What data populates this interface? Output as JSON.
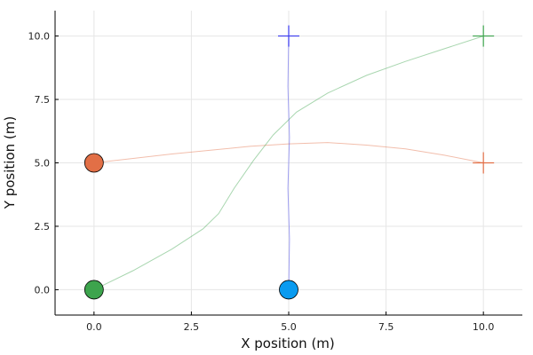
{
  "chart_data": {
    "type": "line",
    "title": "",
    "xlabel": "X position (m)",
    "ylabel": "Y position (m)",
    "xlim": [
      -1,
      11
    ],
    "ylim": [
      -1,
      11
    ],
    "xticks": [
      0.0,
      2.5,
      5.0,
      7.5,
      10.0
    ],
    "yticks": [
      0.0,
      2.5,
      5.0,
      7.5,
      10.0
    ],
    "xtick_labels": [
      "0.0",
      "2.5",
      "5.0",
      "7.5",
      "10.0"
    ],
    "ytick_labels": [
      "0.0",
      "2.5",
      "5.0",
      "7.5",
      "10.0"
    ],
    "grid": true,
    "legend": "none",
    "series": [
      {
        "color": "#e26f46",
        "start": [
          0,
          5
        ],
        "goal": [
          10,
          5
        ],
        "path": [
          [
            0,
            5
          ],
          [
            2,
            5.35
          ],
          [
            4,
            5.65
          ],
          [
            5,
            5.75
          ],
          [
            6,
            5.8
          ],
          [
            7,
            5.7
          ],
          [
            8,
            5.55
          ],
          [
            9,
            5.3
          ],
          [
            10,
            5
          ]
        ]
      },
      {
        "color": "#3da44d",
        "start": [
          0,
          0
        ],
        "goal": [
          10,
          10
        ],
        "path": [
          [
            0,
            0
          ],
          [
            1,
            0.75
          ],
          [
            2,
            1.6
          ],
          [
            2.8,
            2.4
          ],
          [
            3.2,
            3.0
          ],
          [
            3.6,
            4.0
          ],
          [
            4.1,
            5.1
          ],
          [
            4.6,
            6.1
          ],
          [
            5.2,
            7.0
          ],
          [
            6,
            7.75
          ],
          [
            7,
            8.45
          ],
          [
            8,
            9.0
          ],
          [
            9,
            9.5
          ],
          [
            10,
            10
          ]
        ]
      },
      {
        "color": "#3a3aef",
        "dot_color": "#0a9bf0",
        "start": [
          5,
          0
        ],
        "goal": [
          5,
          10
        ],
        "path": [
          [
            5,
            0
          ],
          [
            5.02,
            2
          ],
          [
            4.98,
            4
          ],
          [
            5.02,
            6
          ],
          [
            4.98,
            8
          ],
          [
            5,
            10
          ]
        ]
      }
    ]
  }
}
